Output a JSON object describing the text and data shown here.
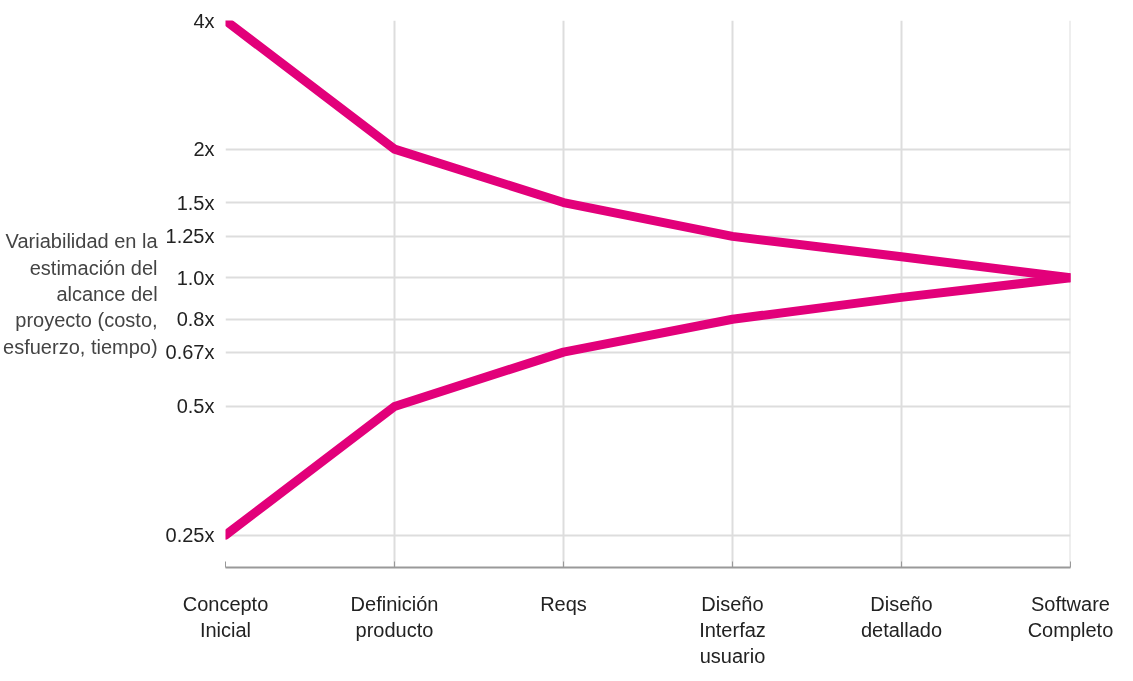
{
  "chart_data": {
    "type": "line",
    "ylabel": "Variabilidad en la estimación del alcance del proyecto (costo, esfuerzo, tiempo)",
    "categories": [
      "Concepto Inicial",
      "Definición producto",
      "Reqs",
      "Diseño Interfaz usuario",
      "Diseño detallado",
      "Software Completo"
    ],
    "series": [
      {
        "color": "#e2007a",
        "values": [
          4,
          2,
          1.5,
          1.25,
          1.12,
          1.0
        ]
      },
      {
        "color": "#e2007a",
        "values": [
          0.25,
          0.5,
          0.67,
          0.8,
          0.9,
          1.0
        ]
      }
    ],
    "log": "y",
    "ylim": [
      0.21,
      4
    ],
    "yticks": [
      {
        "value": 0.25,
        "label": "0.25x"
      },
      {
        "value": 0.5,
        "label": "0.5x"
      },
      {
        "value": 0.67,
        "label": "0.67x"
      },
      {
        "value": 0.8,
        "label": "0.8x"
      },
      {
        "value": 1.0,
        "label": "1.0x"
      },
      {
        "value": 1.25,
        "label": "1.25x"
      },
      {
        "value": 1.5,
        "label": "1.5x"
      },
      {
        "value": 2,
        "label": "2x"
      },
      {
        "value": 4,
        "label": "4x"
      }
    ],
    "grid": true,
    "marker": "none",
    "line_style": "solid"
  }
}
